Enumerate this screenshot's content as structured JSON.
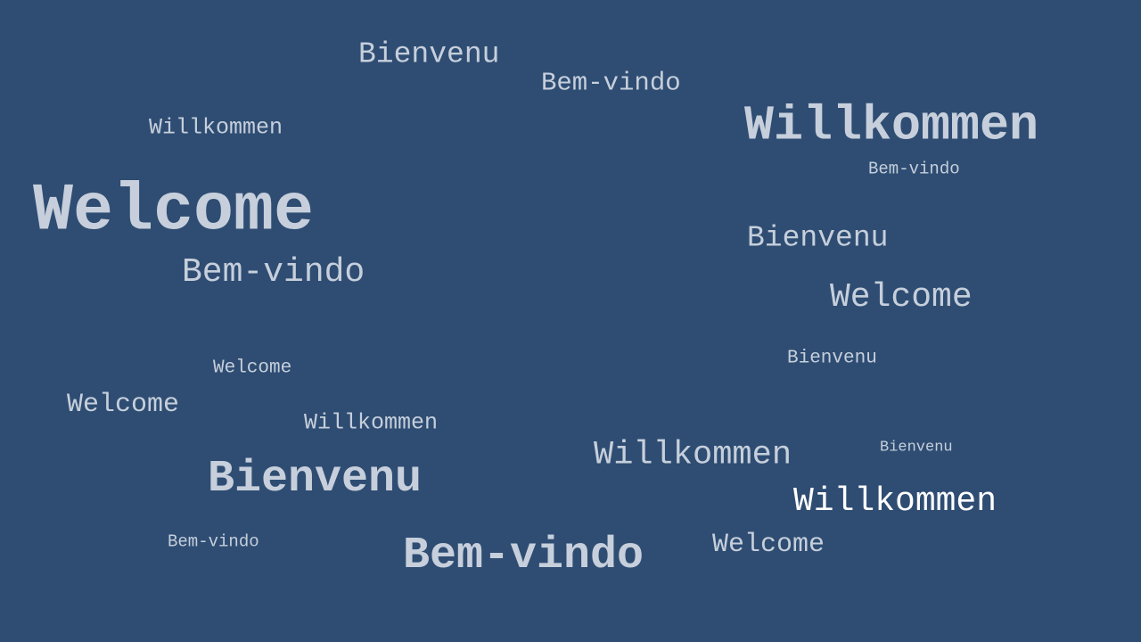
{
  "colors": {
    "background": "#2f4d73",
    "text": "#c6cfdb",
    "highlight": "#ffffff"
  },
  "words": [
    "Bienvenu",
    "Bem-vindo",
    "Willkommen",
    "Willkommen",
    "Bem-vindo",
    "Welcome",
    "Bienvenu",
    "Bem-vindo",
    "Welcome",
    "Bienvenu",
    "Welcome",
    "Welcome",
    "Willkommen",
    "Bienvenu",
    "Willkommen",
    "Bienvenu",
    "Willkommen",
    "Bem-vindo",
    "Welcome",
    "Bem-vindo"
  ]
}
